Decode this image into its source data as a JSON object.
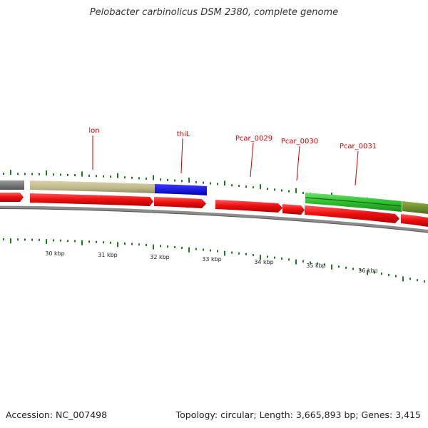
{
  "title": "Pelobacter carbinolicus DSM 2380, complete genome",
  "footer": {
    "accession": "Accession: NC_007498",
    "summary": "Topology: circular; Length: 3,665,893 bp; Genes: 3,415"
  },
  "genome_view": {
    "visible_start_kbp": 29.5,
    "visible_end_kbp": 37.5,
    "tick_labels": [
      "30 kbp",
      "31 kbp",
      "32 kbp",
      "33 kbp",
      "34 kbp",
      "35 kbp",
      "36 kbp"
    ],
    "gene_labels": [
      "lon",
      "thiL",
      "Pcar_0029",
      "Pcar_0030",
      "Pcar_0031"
    ],
    "colors": {
      "cds": "#ee1111",
      "label": "#cc0000",
      "backbone": "#8c8c8c",
      "tick": "#1e7a1e",
      "gray_feature": "#6e6e6e",
      "khaki_feature": "#bdb78a",
      "blue_feature": "#1010dd",
      "green_feature": "#2fbf2f",
      "olive_feature": "#6b8f2a"
    }
  }
}
